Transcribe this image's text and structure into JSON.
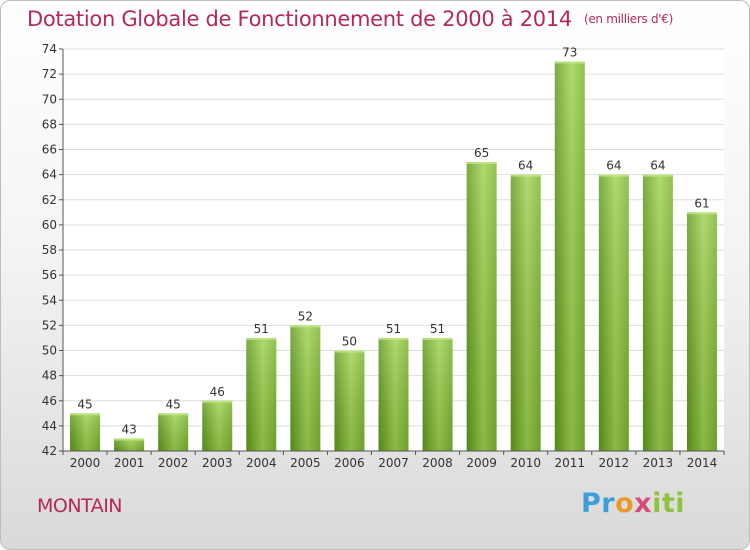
{
  "chart_data": {
    "type": "bar",
    "title": "Dotation Globale de Fonctionnement de 2000 à 2014",
    "subtitle": "(en milliers d'€)",
    "categories": [
      "2000",
      "2001",
      "2002",
      "2003",
      "2004",
      "2005",
      "2006",
      "2007",
      "2008",
      "2009",
      "2010",
      "2011",
      "2012",
      "2013",
      "2014"
    ],
    "values": [
      45,
      43,
      45,
      46,
      51,
      52,
      50,
      51,
      51,
      65,
      64,
      73,
      64,
      64,
      61
    ],
    "ylim": [
      42,
      74
    ],
    "yticks": [
      42,
      44,
      46,
      48,
      50,
      52,
      54,
      56,
      58,
      60,
      62,
      64,
      66,
      68,
      70,
      72,
      74
    ],
    "grid": true,
    "bar_color": "#7ab52e",
    "bar_color_light": "#9fd24e",
    "bar_color_dark": "#5f9a1c"
  },
  "footer": {
    "commune": "MONTAIN",
    "logo": [
      "Pr",
      "o",
      "x",
      "iti"
    ]
  }
}
